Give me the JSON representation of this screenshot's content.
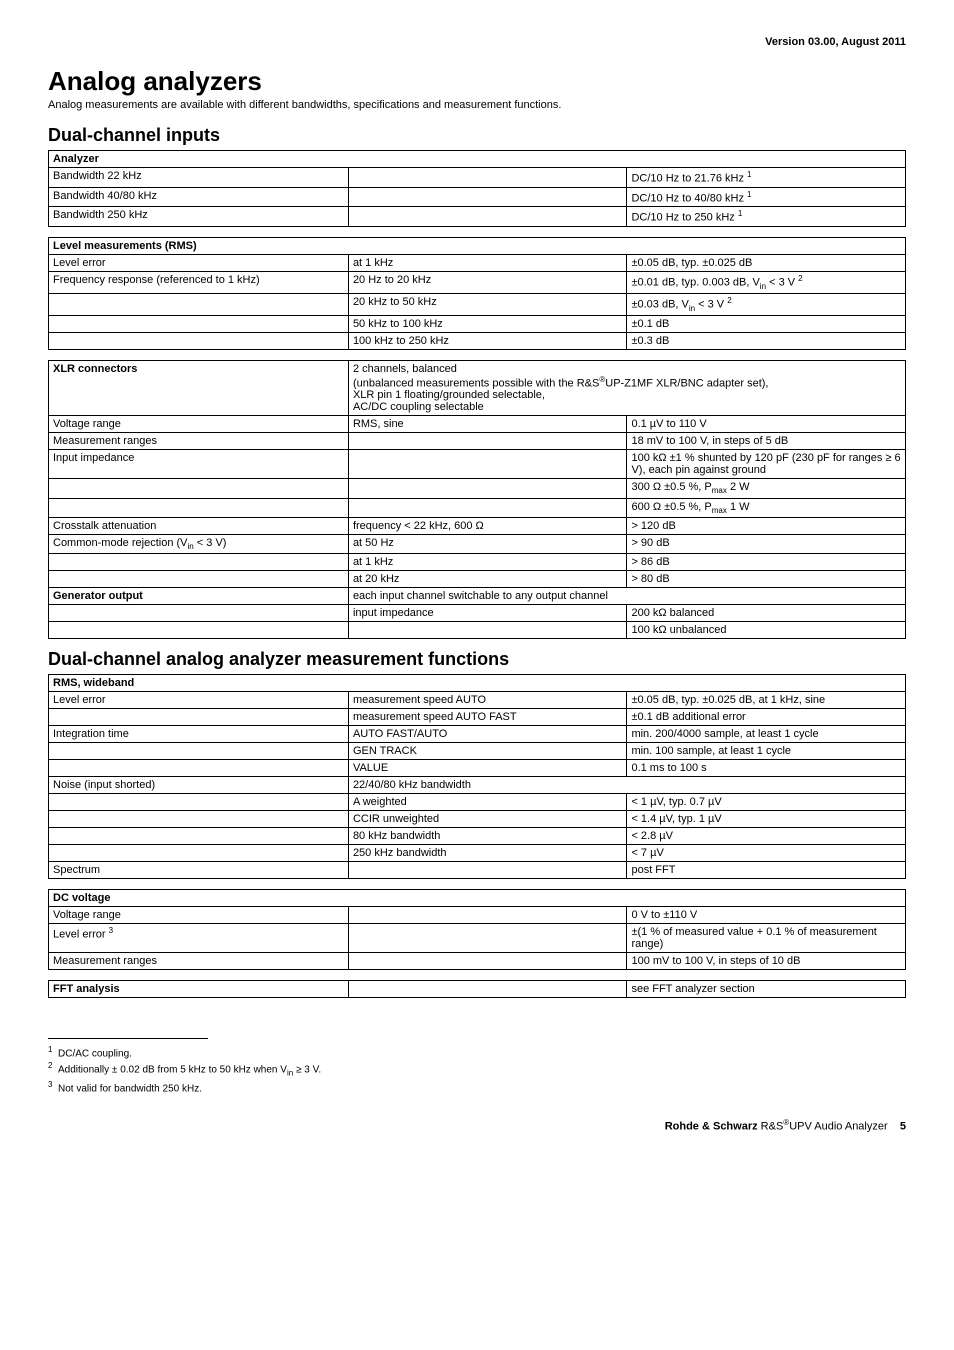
{
  "version_line": "Version 03.00, August 2011",
  "h1": "Analog analyzers",
  "subtitle": "Analog measurements are available with different bandwidths, specifications and measurement functions.",
  "h2_inputs": "Dual-channel inputs",
  "h2_funcs": "Dual-channel analog analyzer measurement functions",
  "tbl_analyzer": {
    "title": "Analyzer",
    "rows": [
      {
        "label": "Bandwidth 22 kHz",
        "mid": "",
        "val_html": "DC/10 Hz to 21.76 kHz <sup>1</sup>"
      },
      {
        "label": "Bandwidth 40/80 kHz",
        "mid": "",
        "val_html": "DC/10 Hz to 40/80 kHz <sup>1</sup>"
      },
      {
        "label": "Bandwidth 250 kHz",
        "mid": "",
        "val_html": "DC/10 Hz to 250 kHz <sup>1</sup>"
      }
    ]
  },
  "tbl_level": {
    "title": "Level measurements (RMS)",
    "rows": [
      {
        "label": "Level error",
        "mid": "at 1 kHz",
        "val_html": "±0.05 dB, typ. ±0.025 dB"
      },
      {
        "label": "Frequency response (referenced to 1 kHz)",
        "mid": "20 Hz to 20 kHz",
        "val_html": "±0.01 dB, typ. 0.003 dB, V<sub>in</sub> &lt; 3 V <sup>2</sup>"
      },
      {
        "label": "",
        "mid": "20 kHz to 50 kHz",
        "val_html": "±0.03 dB, V<sub>in</sub> &lt; 3 V <sup>2</sup>"
      },
      {
        "label": "",
        "mid": "50 kHz to 100 kHz",
        "val_html": "±0.1 dB"
      },
      {
        "label": "",
        "mid": "100 kHz to 250 kHz",
        "val_html": "±0.3 dB"
      }
    ]
  },
  "tbl_xlr": {
    "rows": [
      {
        "label_html": "<b>XLR connectors</b>",
        "mid_colspan2_html": "2 channels, balanced<br>(unbalanced measurements possible with the R&amp;S<sup>®</sup>UP-Z1MF XLR/BNC adapter set),<br>XLR pin 1 floating/grounded selectable,<br>AC/DC coupling selectable"
      },
      {
        "label": "Voltage range",
        "mid": "RMS, sine",
        "val_html": "0.1 µV to 110 V"
      },
      {
        "label": "Measurement ranges",
        "mid": "",
        "val_html": "18 mV to 100 V, in steps of 5 dB"
      },
      {
        "label": "Input impedance",
        "mid": "",
        "val_html": "100 kΩ ±1 % shunted by 120 pF (230 pF for ranges ≥ 6 V), each pin against ground"
      },
      {
        "label": "",
        "mid": "",
        "val_html": "300 Ω  ±0.5 %, P<sub>max</sub> 2 W"
      },
      {
        "label": "",
        "mid": "",
        "val_html": "600 Ω  ±0.5 %, P<sub>max</sub> 1 W"
      },
      {
        "label": "Crosstalk attenuation",
        "mid": "frequency < 22 kHz, 600 Ω",
        "val_html": "> 120 dB"
      },
      {
        "label_html": "Common-mode rejection (V<sub>in</sub> &lt; 3 V)",
        "mid": "at 50 Hz",
        "val_html": "> 90 dB"
      },
      {
        "label": "",
        "mid": "at 1 kHz",
        "val_html": "> 86 dB"
      },
      {
        "label": "",
        "mid": "at 20 kHz",
        "val_html": "> 80 dB"
      },
      {
        "label_html": "<b>Generator output</b>",
        "mid_colspan2_html": "each input channel switchable to any output channel"
      },
      {
        "label": "",
        "mid": "input impedance",
        "val_html": "200 kΩ balanced"
      },
      {
        "label": "",
        "mid": "",
        "val_html": "100 kΩ unbalanced"
      }
    ]
  },
  "tbl_rms": {
    "title": "RMS, wideband",
    "rows": [
      {
        "label": "Level error",
        "mid": "measurement speed AUTO",
        "val_html": "±0.05 dB, typ. ±0.025 dB, at 1 kHz, sine"
      },
      {
        "label": "",
        "mid": "measurement speed AUTO FAST",
        "val_html": "±0.1 dB additional error"
      },
      {
        "label": "Integration time",
        "mid": "AUTO FAST/AUTO",
        "val_html": "min. 200/4000 sample, at least 1 cycle"
      },
      {
        "label": "",
        "mid": "GEN TRACK",
        "val_html": "min. 100 sample, at least 1 cycle"
      },
      {
        "label": "",
        "mid": "VALUE",
        "val_html": "0.1 ms to 100 s"
      },
      {
        "label": "Noise (input shorted)",
        "mid_colspan2_html": "22/40/80 kHz bandwidth"
      },
      {
        "label": "",
        "mid": "A weighted",
        "val_html": "< 1 µV, typ. 0.7 µV"
      },
      {
        "label": "",
        "mid": "CCIR unweighted",
        "val_html": "< 1.4 µV, typ. 1 µV"
      },
      {
        "label": "",
        "mid": "80 kHz bandwidth",
        "val_html": "< 2.8 µV"
      },
      {
        "label": "",
        "mid": "250 kHz bandwidth",
        "val_html": "< 7 µV"
      },
      {
        "label": "Spectrum",
        "mid": "",
        "val_html": "post FFT"
      }
    ]
  },
  "tbl_dc": {
    "title": "DC voltage",
    "rows": [
      {
        "label": "Voltage range",
        "mid": "",
        "val_html": "0 V to ±110 V"
      },
      {
        "label_html": "Level error <sup>3</sup>",
        "mid": "",
        "val_html": "±(1 % of measured value + 0.1 % of measurement range)"
      },
      {
        "label": "Measurement ranges",
        "mid": "",
        "val_html": "100 mV to 100 V, in steps of 10 dB"
      }
    ]
  },
  "tbl_fft": {
    "title": "FFT analysis",
    "val": "see FFT analyzer section"
  },
  "footnotes": {
    "f1_html": "<sup>1</sup>&nbsp;&nbsp;DC/AC coupling.",
    "f2_html": "<sup>2</sup>&nbsp;&nbsp;Additionally ± 0.02 dB from 5 kHz to 50 kHz when V<sub>in</sub> ≥ 3 V.",
    "f3_html": "<sup>3</sup>&nbsp;&nbsp;Not valid for bandwidth 250 kHz."
  },
  "footer_html": "<b>Rohde &amp; Schwarz</b> R&amp;S<sup>®</sup>UPV Audio Analyzer&nbsp;&nbsp;&nbsp;&nbsp;<b>5</b>"
}
